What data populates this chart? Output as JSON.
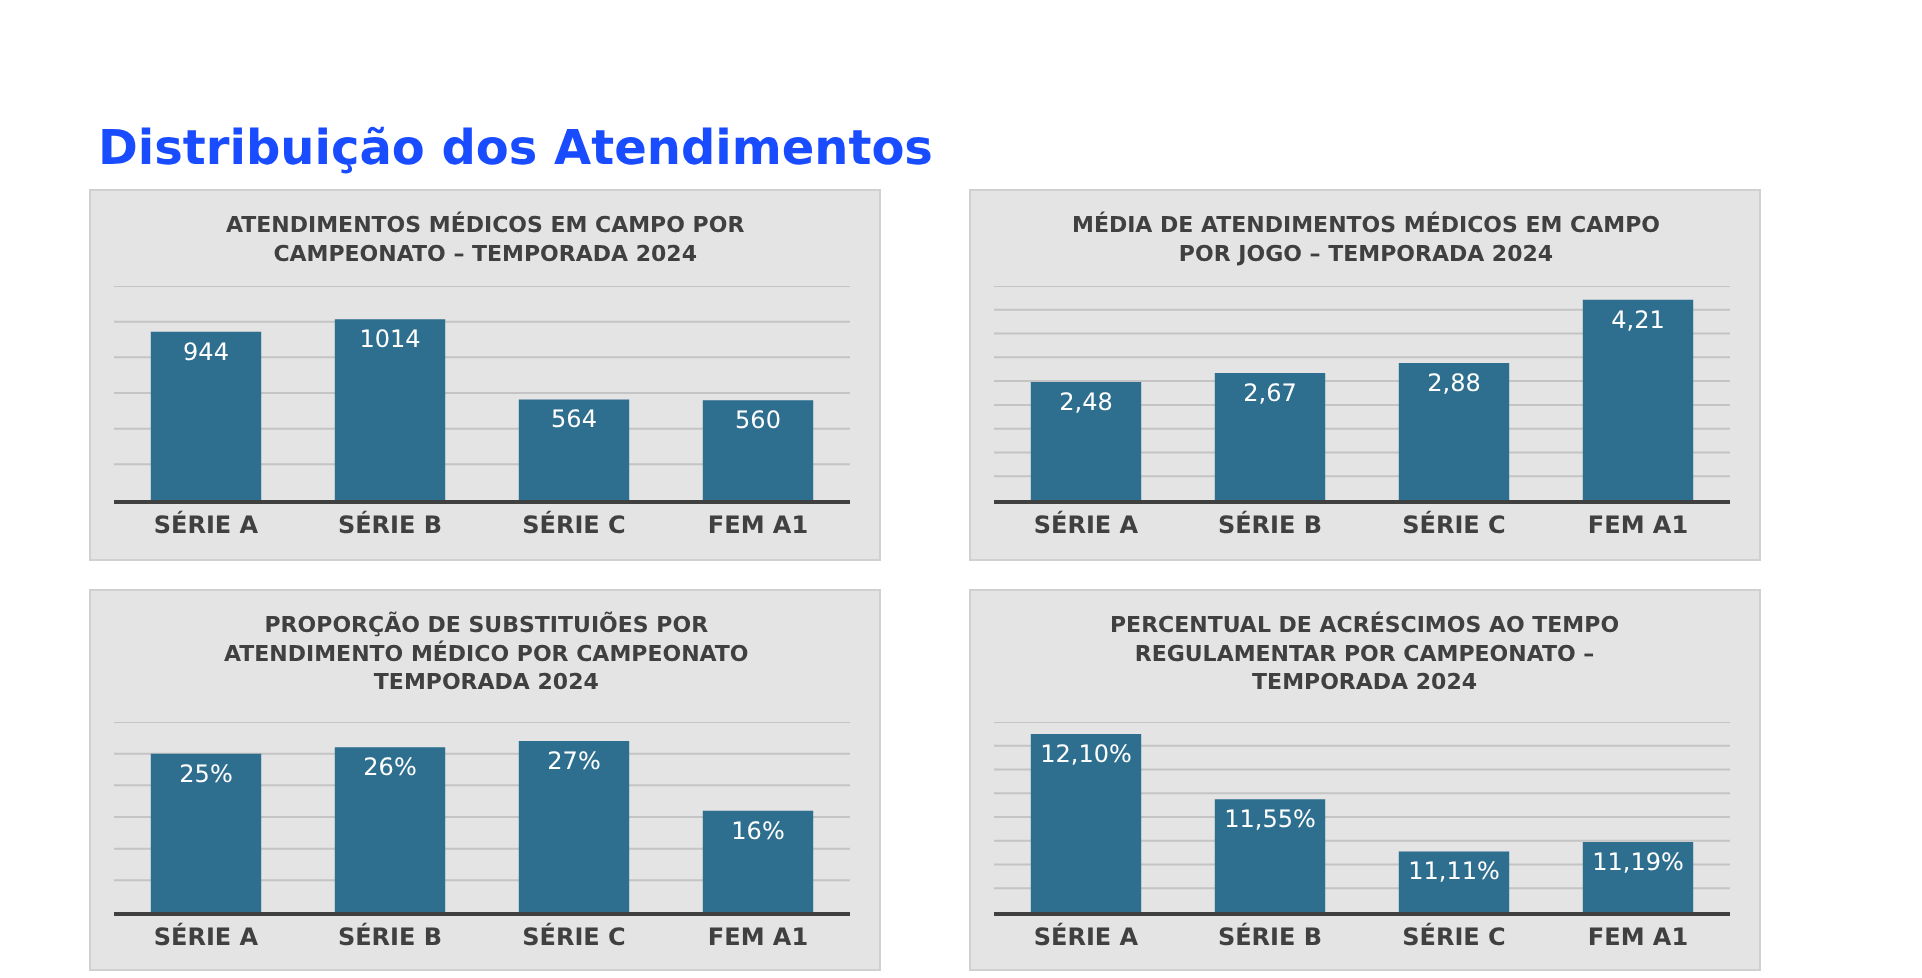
{
  "chart_data": [
    {
      "type": "bar",
      "title": "ATENDIMENTOS MÉDICOS EM CAMPO POR\nCAMPEONATO – TEMPORADA 2024",
      "annotations": [
        "Distribuição dos Atendimentos"
      ],
      "categories": [
        "SÉRIE A",
        "SÉRIE B",
        "SÉRIE C",
        "FEM A1"
      ],
      "values": [
        944,
        1014,
        564,
        560
      ],
      "value_labels": [
        "944",
        "1014",
        "564",
        "560"
      ],
      "color": "#2e6e8e",
      "ylim": [
        0,
        1200
      ],
      "yticks": [
        {
          "value": 200,
          "label": null
        },
        {
          "value": 400,
          "label": null
        },
        {
          "value": 600,
          "label": null
        },
        {
          "value": 800,
          "label": null
        },
        {
          "value": 1000,
          "label": null
        },
        {
          "value": 1200,
          "label": null
        }
      ],
      "grid": "y",
      "tick_labels": "x"
    },
    {
      "type": "bar",
      "title": "MÉDIA DE ATENDIMENTOS MÉDICOS EM CAMPO\nPOR JOGO – TEMPORADA 2024",
      "categories": [
        "SÉRIE A",
        "SÉRIE B",
        "SÉRIE C",
        "FEM A1"
      ],
      "values": [
        2.48,
        2.67,
        2.88,
        4.21
      ],
      "value_labels": [
        "2,48",
        "2,67",
        "2,88",
        "4,21"
      ],
      "color": "#2e6e8e",
      "ylim": [
        0,
        4.5
      ],
      "yticks": [
        {
          "value": 0.5,
          "label": null
        },
        {
          "value": 1,
          "label": null
        },
        {
          "value": 1.5,
          "label": null
        },
        {
          "value": 2,
          "label": null
        },
        {
          "value": 2.5,
          "label": null
        },
        {
          "value": 3,
          "label": null
        },
        {
          "value": 3.5,
          "label": null
        },
        {
          "value": 4,
          "label": null
        },
        {
          "value": 4.5,
          "label": null
        }
      ],
      "grid": "y",
      "tick_labels": "x"
    },
    {
      "type": "bar",
      "title": "PROPORÇÃO DE SUBSTITUIÕES POR\nATENDIMENTO MÉDICO POR CAMPEONATO\nTEMPORADA 2024",
      "categories": [
        "SÉRIE A",
        "SÉRIE B",
        "SÉRIE C",
        "FEM A1"
      ],
      "values": [
        25,
        26,
        27,
        16
      ],
      "value_labels": [
        "25%",
        "26%",
        "27%",
        "16%"
      ],
      "color": "#2e6e8e",
      "ylim": [
        0,
        30
      ],
      "yticks": [
        {
          "value": 5,
          "label": null
        },
        {
          "value": 10,
          "label": null
        },
        {
          "value": 15,
          "label": null
        },
        {
          "value": 20,
          "label": null
        },
        {
          "value": 25,
          "label": null
        },
        {
          "value": 30,
          "label": null
        }
      ],
      "grid": "y",
      "tick_labels": "x"
    },
    {
      "type": "bar",
      "title": "PERCENTUAL DE ACRÉSCIMOS AO TEMPO\nREGULAMENTAR POR CAMPEONATO –\nTEMPORADA 2024",
      "categories": [
        "SÉRIE A",
        "SÉRIE B",
        "SÉRIE C",
        "FEM A1"
      ],
      "values": [
        12.1,
        11.55,
        11.11,
        11.19
      ],
      "value_labels": [
        "12,10%",
        "11,55%",
        "11,11%",
        "11,19%"
      ],
      "color": "#2e6e8e",
      "ylim": [
        10.6,
        12.2
      ],
      "yticks": [
        {
          "value": 10.8,
          "label": null
        },
        {
          "value": 11.0,
          "label": null
        },
        {
          "value": 11.2,
          "label": null
        },
        {
          "value": 11.4,
          "label": null
        },
        {
          "value": 11.6,
          "label": null
        },
        {
          "value": 11.8,
          "label": null
        },
        {
          "value": 12.0,
          "label": null
        },
        {
          "value": 12.2,
          "label": null
        }
      ],
      "grid": "y",
      "tick_labels": "x"
    }
  ]
}
